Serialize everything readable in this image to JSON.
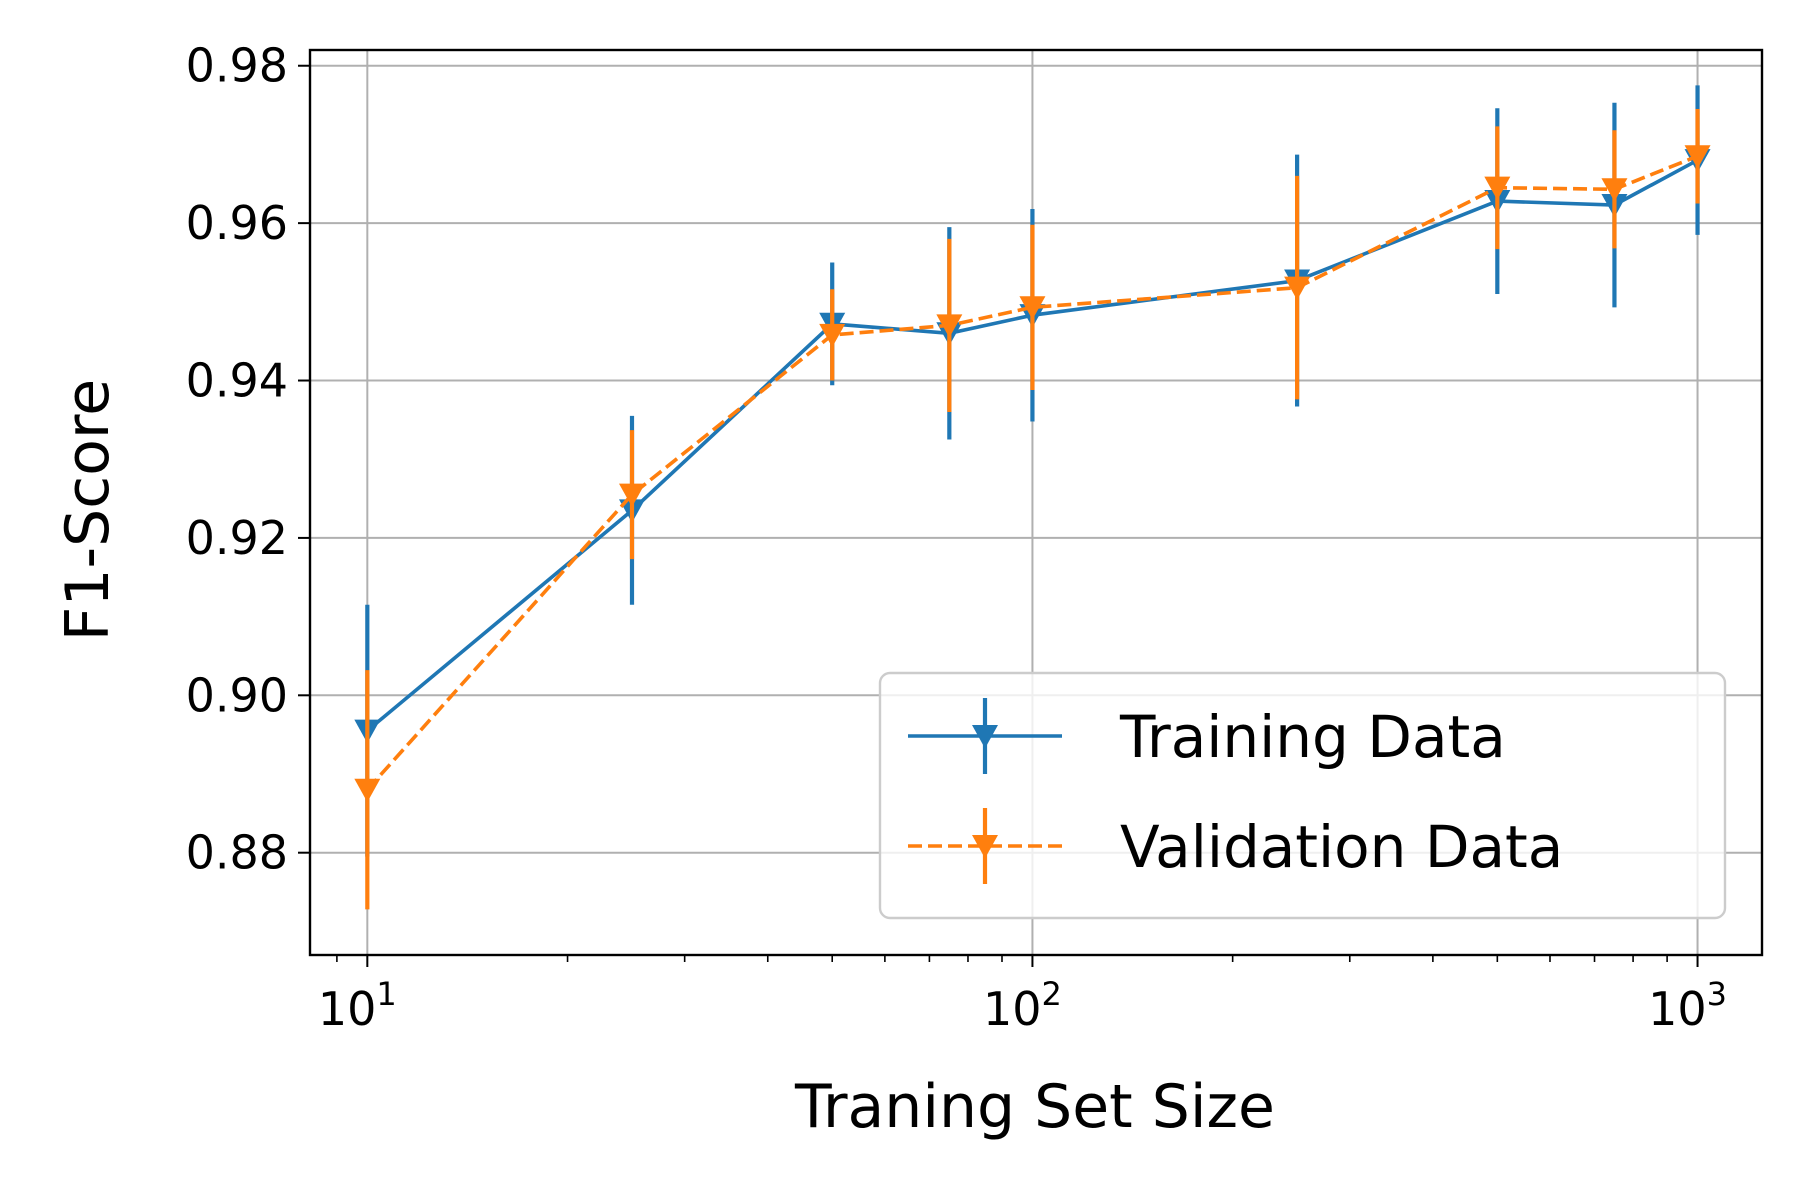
{
  "chart_data": {
    "type": "line",
    "title": "",
    "xlabel": "Traning Set Size",
    "ylabel": "F1-Score",
    "x_scale": "log",
    "xlim": [
      8.2,
      1250
    ],
    "ylim": [
      0.867,
      0.982
    ],
    "grid": true,
    "legend_position": "lower-right",
    "x": [
      10,
      25,
      50,
      75,
      100,
      250,
      500,
      750,
      1000
    ],
    "x_ticks": [
      {
        "value": 10,
        "base": "10",
        "exp": "1"
      },
      {
        "value": 100,
        "base": "10",
        "exp": "2"
      },
      {
        "value": 1000,
        "base": "10",
        "exp": "3"
      }
    ],
    "y_ticks": [
      {
        "value": 0.88,
        "label": "0.88"
      },
      {
        "value": 0.9,
        "label": "0.90"
      },
      {
        "value": 0.92,
        "label": "0.92"
      },
      {
        "value": 0.94,
        "label": "0.94"
      },
      {
        "value": 0.96,
        "label": "0.96"
      },
      {
        "value": 0.98,
        "label": "0.98"
      }
    ],
    "series": [
      {
        "name": "Training Data",
        "color": "#1f77b4",
        "dash": "solid",
        "y": [
          0.8955,
          0.9235,
          0.9472,
          0.946,
          0.9483,
          0.9527,
          0.9628,
          0.9623,
          0.968
        ],
        "err": [
          0.016,
          0.012,
          0.0078,
          0.0135,
          0.0135,
          0.016,
          0.0118,
          0.013,
          0.0095
        ]
      },
      {
        "name": "Validation Data",
        "color": "#ff7f0e",
        "dash": "dashed",
        "y": [
          0.888,
          0.9255,
          0.9458,
          0.947,
          0.9493,
          0.9518,
          0.9645,
          0.9643,
          0.9685
        ],
        "err": [
          0.0152,
          0.0082,
          0.0058,
          0.011,
          0.0105,
          0.0142,
          0.0078,
          0.0075,
          0.006
        ]
      }
    ]
  }
}
